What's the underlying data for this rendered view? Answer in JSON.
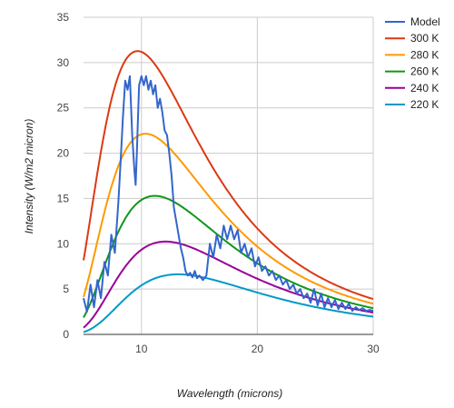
{
  "chart_data": {
    "type": "line",
    "title": "",
    "xlabel": "Wavelength (microns)",
    "ylabel": "Intensity (W/m2 micron)",
    "xlim": [
      5,
      30
    ],
    "ylim": [
      0,
      35
    ],
    "xticks": [
      10,
      20,
      30
    ],
    "yticks": [
      0,
      5,
      10,
      15,
      20,
      25,
      30,
      35
    ],
    "grid": true,
    "legend_position": "right",
    "series": [
      {
        "name": "Model",
        "color": "#3366cc",
        "x": [
          5.0,
          5.3,
          5.6,
          5.9,
          6.2,
          6.5,
          6.8,
          7.1,
          7.4,
          7.7,
          8.0,
          8.2,
          8.4,
          8.6,
          8.8,
          9.0,
          9.2,
          9.4,
          9.5,
          9.6,
          9.7,
          9.8,
          9.9,
          10.0,
          10.2,
          10.4,
          10.6,
          10.8,
          11.0,
          11.2,
          11.4,
          11.6,
          11.8,
          12.0,
          12.2,
          12.4,
          12.6,
          12.8,
          13.0,
          13.2,
          13.4,
          13.6,
          13.8,
          14.0,
          14.2,
          14.4,
          14.6,
          14.8,
          15.0,
          15.3,
          15.6,
          15.9,
          16.2,
          16.5,
          16.8,
          17.1,
          17.4,
          17.7,
          18.0,
          18.3,
          18.6,
          18.9,
          19.2,
          19.5,
          19.8,
          20.1,
          20.4,
          20.7,
          21.0,
          21.3,
          21.6,
          21.9,
          22.2,
          22.5,
          22.8,
          23.1,
          23.4,
          23.7,
          24.0,
          24.3,
          24.6,
          24.9,
          25.2,
          25.5,
          25.8,
          26.1,
          26.4,
          26.7,
          27.0,
          27.3,
          27.6,
          27.9,
          28.2,
          28.5,
          28.8,
          29.1,
          29.4,
          29.7,
          30.0
        ],
        "values": [
          4.0,
          2.5,
          5.5,
          3.0,
          6.0,
          4.0,
          8.0,
          6.5,
          11.0,
          9.0,
          14.5,
          19.0,
          24.0,
          28.0,
          27.0,
          28.5,
          22.0,
          18.0,
          16.5,
          20.0,
          24.0,
          27.5,
          28.0,
          28.5,
          27.5,
          28.5,
          27.0,
          28.0,
          26.5,
          27.5,
          25.0,
          26.0,
          24.5,
          22.5,
          22.0,
          20.0,
          17.5,
          14.0,
          12.5,
          11.0,
          9.5,
          8.5,
          7.0,
          6.5,
          6.8,
          6.3,
          7.0,
          6.2,
          6.5,
          6.0,
          6.5,
          10.0,
          8.5,
          11.0,
          9.5,
          12.0,
          10.5,
          12.0,
          10.5,
          11.5,
          9.0,
          10.0,
          8.5,
          9.5,
          7.5,
          8.5,
          7.0,
          7.5,
          6.5,
          7.0,
          6.0,
          6.5,
          5.5,
          6.0,
          5.0,
          5.5,
          4.5,
          5.0,
          4.0,
          4.5,
          3.5,
          5.0,
          3.2,
          4.5,
          3.0,
          4.0,
          3.0,
          3.8,
          2.8,
          3.5,
          2.8,
          3.4,
          2.6,
          3.0,
          2.7,
          2.9,
          2.6,
          2.7,
          2.6
        ]
      },
      {
        "name": "300 K",
        "color": "#dc3912",
        "temperature": 300
      },
      {
        "name": "280 K",
        "color": "#ff9900",
        "temperature": 280
      },
      {
        "name": "260 K",
        "color": "#109618",
        "temperature": 260
      },
      {
        "name": "240 K",
        "color": "#990099",
        "temperature": 240
      },
      {
        "name": "220 K",
        "color": "#0099c6",
        "temperature": 220
      }
    ]
  }
}
